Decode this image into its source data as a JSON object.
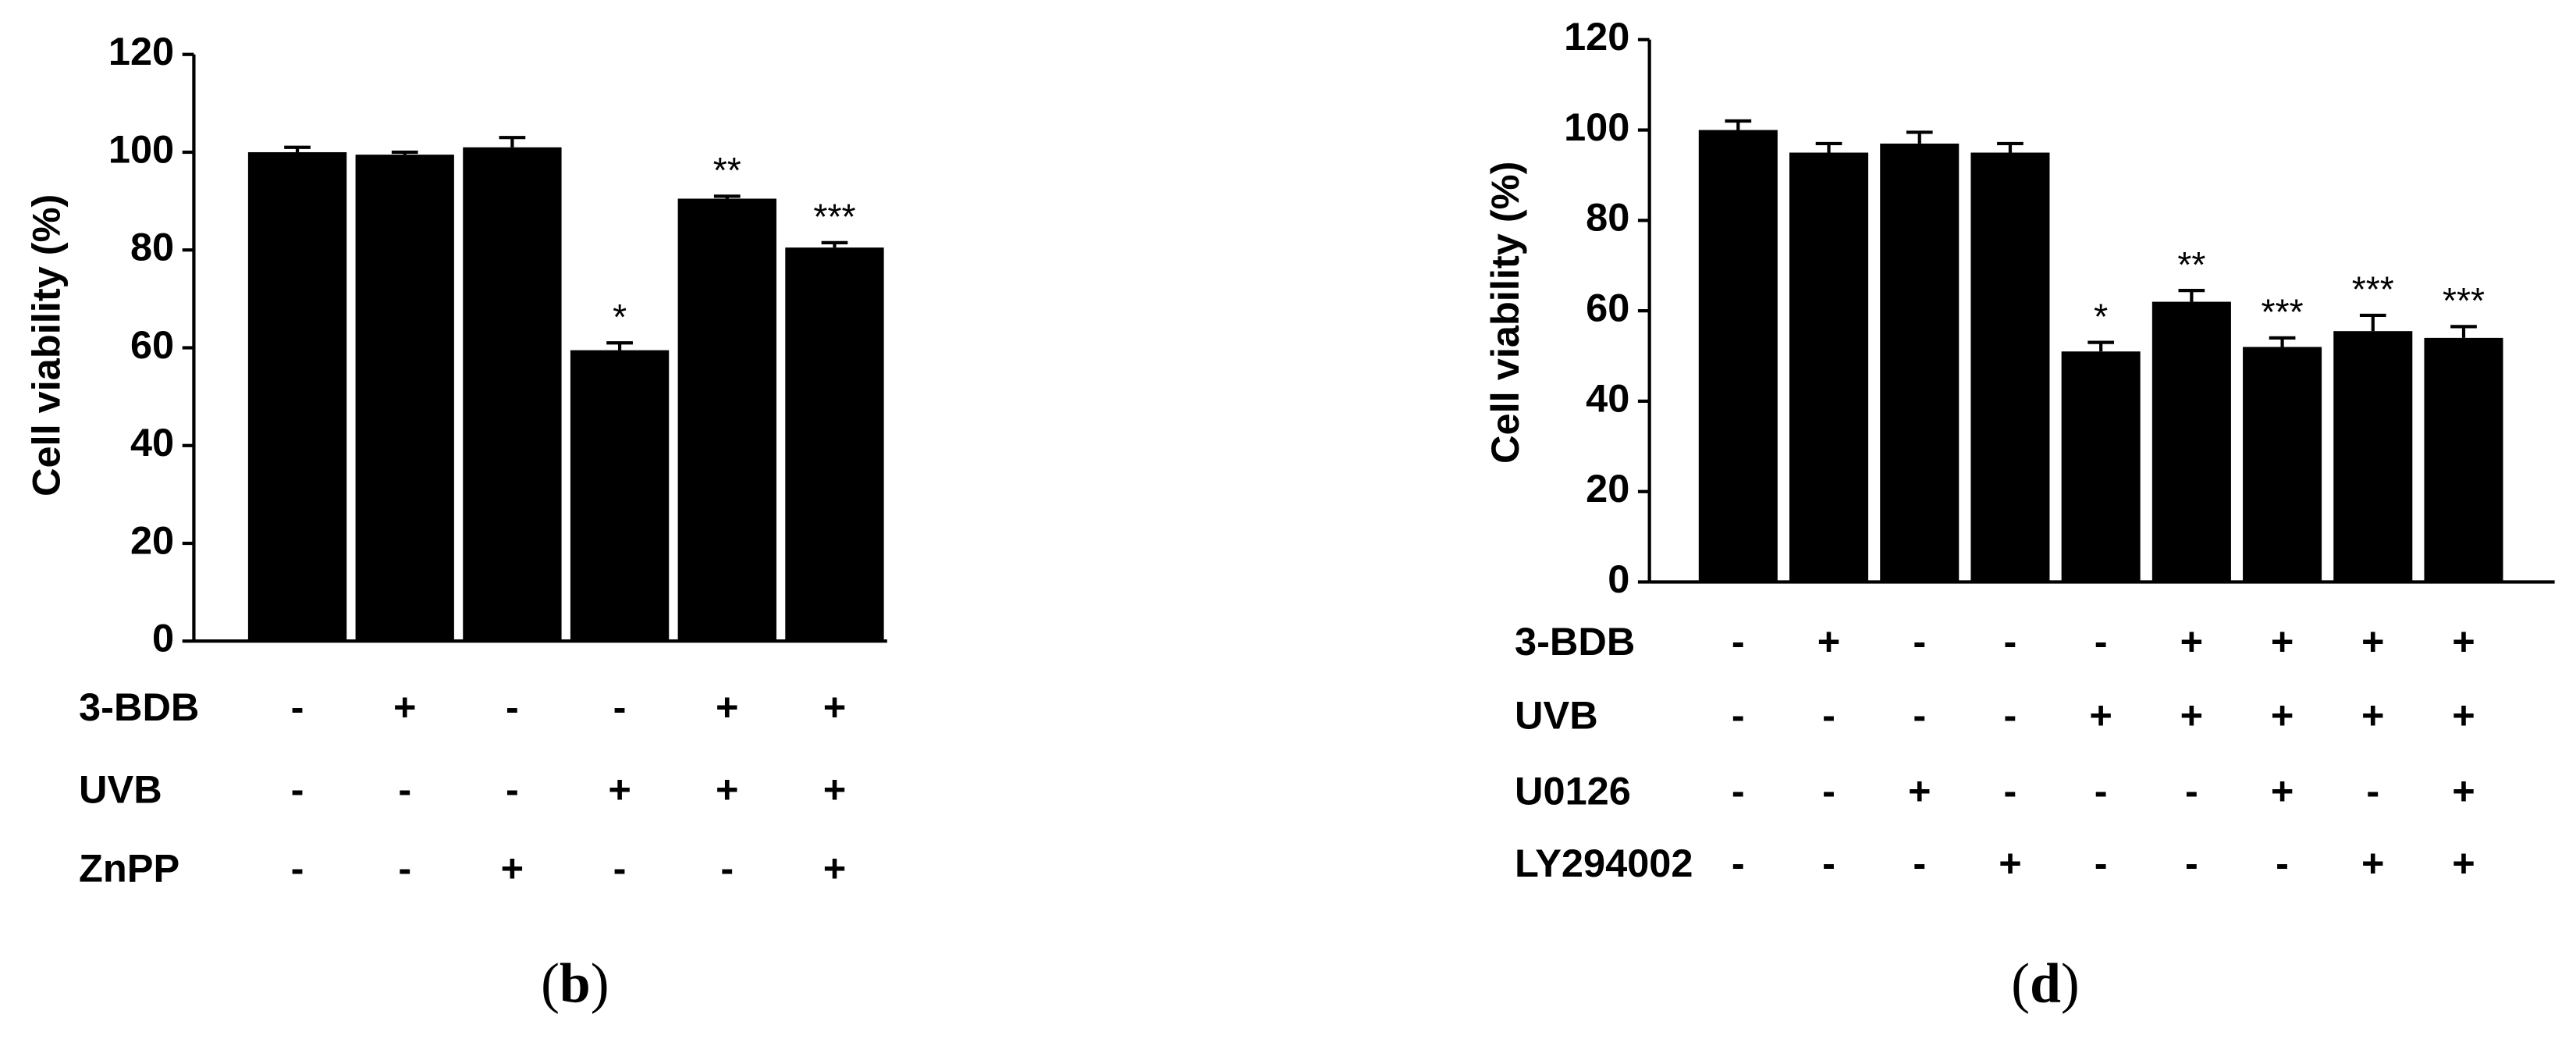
{
  "chart_data": [
    {
      "type": "bar",
      "ylabel": "Cell viability (%)",
      "color": "#000000",
      "values": [
        100,
        99.5,
        101,
        59.5,
        90.5,
        80.5
      ],
      "errors": [
        1,
        0.5,
        2,
        1.5,
        0.5,
        1
      ],
      "annotations": [
        null,
        null,
        null,
        "*",
        "**",
        "***"
      ],
      "ylim": [
        0,
        120
      ],
      "yticks": [
        0,
        20,
        40,
        60,
        80,
        100,
        120
      ],
      "treatments": [
        {
          "name": "3-BDB",
          "marks": [
            "-",
            "+",
            "-",
            "-",
            "+",
            "+"
          ]
        },
        {
          "name": "UVB",
          "marks": [
            "-",
            "-",
            "-",
            "+",
            "+",
            "+"
          ]
        },
        {
          "name": "ZnPP",
          "marks": [
            "-",
            "-",
            "+",
            "-",
            "-",
            "+"
          ]
        }
      ],
      "caption": [
        "(",
        "b",
        ")"
      ]
    },
    {
      "type": "bar",
      "ylabel": "Cell viability (%)",
      "color": "#000000",
      "values": [
        100,
        95,
        97,
        95,
        51,
        62,
        52,
        55.5,
        54
      ],
      "errors": [
        2,
        2,
        2.5,
        2,
        2,
        2.5,
        2,
        3.5,
        2.5
      ],
      "annotations": [
        null,
        null,
        null,
        null,
        "*",
        "**",
        "***",
        "***",
        "***"
      ],
      "ylim": [
        0,
        120
      ],
      "yticks": [
        0,
        20,
        40,
        60,
        80,
        100,
        120
      ],
      "treatments": [
        {
          "name": "3-BDB",
          "marks": [
            "-",
            "+",
            "-",
            "-",
            "-",
            "+",
            "+",
            "+",
            "+"
          ]
        },
        {
          "name": "UVB",
          "marks": [
            "-",
            "-",
            "-",
            "-",
            "+",
            "+",
            "+",
            "+",
            "+"
          ]
        },
        {
          "name": "U0126",
          "marks": [
            "-",
            "-",
            "+",
            "-",
            "-",
            "-",
            "+",
            "-",
            "+"
          ]
        },
        {
          "name": "LY294002",
          "marks": [
            "-",
            "-",
            "-",
            "+",
            "-",
            "-",
            "-",
            "+",
            "+"
          ]
        }
      ],
      "caption": [
        "(",
        "d",
        ")"
      ]
    }
  ]
}
